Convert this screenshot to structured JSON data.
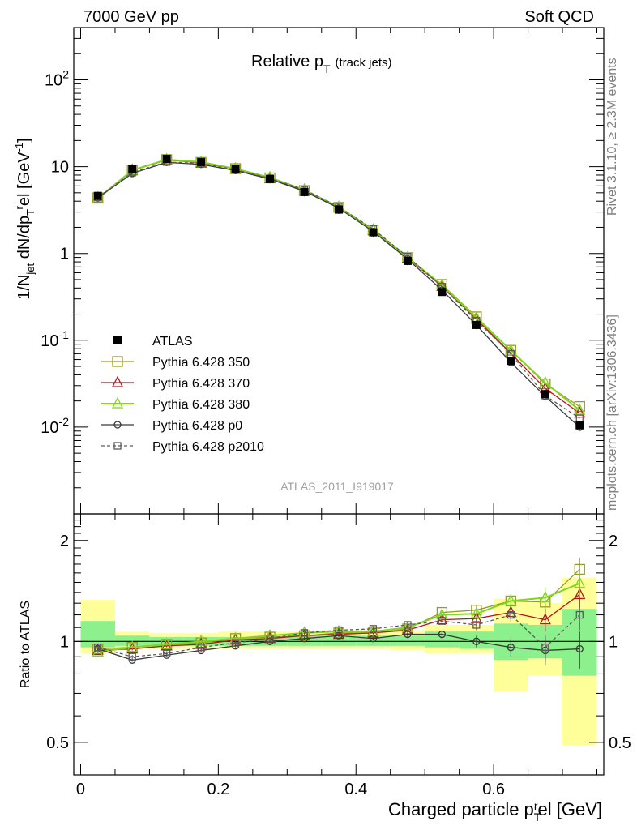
{
  "header": {
    "left": "7000 GeV pp",
    "right": "Soft QCD"
  },
  "side_labels": {
    "rivet": "Rivet 3.1.10, ≥ 2.3M events",
    "source": "mcplots.cern.ch [arXiv:1306.3436]"
  },
  "plot": {
    "title_main": "Relative p",
    "title_sub": "T",
    "title_suffix": "(track jets)",
    "analysis_id": "ATLAS_2011_I919017",
    "ylabel": "1/N_jet dN/dp_T^rel [GeV^-1]",
    "ratio_ylabel": "Ratio to ATLAS",
    "xlabel": "Charged particle p_T^rel [GeV]"
  },
  "axis_text": {
    "x_ticks": [
      "0",
      "0.2",
      "0.4",
      "0.6"
    ],
    "y_ticks": [
      "10^-2",
      "10^-1",
      "1",
      "10",
      "10^2"
    ],
    "ratio_ticks": [
      "0.5",
      "1",
      "2"
    ]
  },
  "legend": [
    {
      "label": "ATLAS",
      "key": "atlas"
    },
    {
      "label": "Pythia 6.428 350",
      "key": "s350"
    },
    {
      "label": "Pythia 6.428 370",
      "key": "s370"
    },
    {
      "label": "Pythia 6.428 380",
      "key": "s380"
    },
    {
      "label": "Pythia 6.428 p0",
      "key": "p0"
    },
    {
      "label": "Pythia 6.428 p2010",
      "key": "p2010"
    }
  ],
  "colors": {
    "atlas": "#000000",
    "s350": "#9a9a1e",
    "s370": "#b0181e",
    "s380": "#7fd61e",
    "p0": "#3a3a3a",
    "p2010": "#5a5a5a",
    "band_outer": "#ffff99",
    "band_inner": "#8cf08c"
  },
  "chart_data": {
    "type": "line",
    "log_y": true,
    "xlim": [
      -0.01,
      0.76
    ],
    "ylim": [
      0.001,
      400
    ],
    "ratio_ylim": [
      0.4,
      2.4
    ],
    "x": [
      0.025,
      0.075,
      0.125,
      0.175,
      0.225,
      0.275,
      0.325,
      0.375,
      0.425,
      0.475,
      0.525,
      0.575,
      0.625,
      0.675,
      0.725
    ],
    "bin_edges": [
      0.0,
      0.05,
      0.1,
      0.15,
      0.2,
      0.25,
      0.3,
      0.35,
      0.4,
      0.45,
      0.5,
      0.55,
      0.6,
      0.65,
      0.7,
      0.75
    ],
    "atlas": [
      4.6,
      9.5,
      12.3,
      11.3,
      9.3,
      7.2,
      5.1,
      3.2,
      1.75,
      0.82,
      0.36,
      0.15,
      0.058,
      0.024,
      0.0105
    ],
    "series": [
      {
        "key": "s350",
        "ratio": [
          0.95,
          0.96,
          0.98,
          0.99,
          1.02,
          1.03,
          1.04,
          1.06,
          1.06,
          1.09,
          1.22,
          1.24,
          1.32,
          1.31,
          1.64
        ],
        "ratio_err": [
          0.01,
          0.01,
          0.01,
          0.01,
          0.01,
          0.01,
          0.01,
          0.01,
          0.01,
          0.02,
          0.03,
          0.04,
          0.06,
          0.1,
          0.14
        ]
      },
      {
        "key": "s370",
        "ratio": [
          0.94,
          0.95,
          0.97,
          0.98,
          1.01,
          1.02,
          1.04,
          1.05,
          1.06,
          1.08,
          1.16,
          1.17,
          1.22,
          1.16,
          1.38
        ],
        "ratio_err": [
          0.01,
          0.01,
          0.01,
          0.01,
          0.01,
          0.01,
          0.01,
          0.01,
          0.01,
          0.02,
          0.03,
          0.04,
          0.06,
          0.09,
          0.12
        ]
      },
      {
        "key": "s380",
        "ratio": [
          0.93,
          0.96,
          0.98,
          1.0,
          1.02,
          1.04,
          1.06,
          1.07,
          1.07,
          1.1,
          1.2,
          1.21,
          1.32,
          1.35,
          1.49
        ],
        "ratio_err": [
          0.01,
          0.01,
          0.01,
          0.01,
          0.01,
          0.01,
          0.01,
          0.01,
          0.01,
          0.02,
          0.03,
          0.04,
          0.06,
          0.1,
          0.13
        ]
      },
      {
        "key": "p0",
        "ratio": [
          0.95,
          0.88,
          0.91,
          0.94,
          0.97,
          1.0,
          1.02,
          1.04,
          1.02,
          1.05,
          1.05,
          1.0,
          0.96,
          0.94,
          0.95
        ],
        "ratio_err": [
          0.01,
          0.01,
          0.01,
          0.01,
          0.01,
          0.01,
          0.01,
          0.01,
          0.01,
          0.02,
          0.03,
          0.04,
          0.06,
          0.09,
          0.12
        ]
      },
      {
        "key": "p2010",
        "ratio": [
          0.96,
          0.9,
          0.92,
          0.96,
          0.99,
          1.02,
          1.06,
          1.08,
          1.09,
          1.12,
          1.15,
          1.12,
          1.2,
          0.96,
          1.2
        ],
        "ratio_err": [
          0.01,
          0.01,
          0.01,
          0.01,
          0.01,
          0.01,
          0.01,
          0.01,
          0.01,
          0.02,
          0.03,
          0.04,
          0.06,
          0.09,
          0.12
        ]
      }
    ],
    "band_inner": [
      [
        0.96,
        1.15
      ],
      [
        0.97,
        1.04
      ],
      [
        0.97,
        1.03
      ],
      [
        0.97,
        1.03
      ],
      [
        0.97,
        1.03
      ],
      [
        0.97,
        1.03
      ],
      [
        0.97,
        1.04
      ],
      [
        0.97,
        1.04
      ],
      [
        0.97,
        1.04
      ],
      [
        0.97,
        1.04
      ],
      [
        0.96,
        1.07
      ],
      [
        0.95,
        1.07
      ],
      [
        0.88,
        1.13
      ],
      [
        0.89,
        1.12
      ],
      [
        0.79,
        1.25
      ]
    ],
    "band_outer": [
      [
        0.92,
        1.33
      ],
      [
        0.95,
        1.07
      ],
      [
        0.95,
        1.06
      ],
      [
        0.95,
        1.06
      ],
      [
        0.95,
        1.07
      ],
      [
        0.95,
        1.07
      ],
      [
        0.95,
        1.07
      ],
      [
        0.95,
        1.08
      ],
      [
        0.95,
        1.08
      ],
      [
        0.94,
        1.08
      ],
      [
        0.92,
        1.12
      ],
      [
        0.92,
        1.12
      ],
      [
        0.71,
        1.34
      ],
      [
        0.79,
        1.3
      ],
      [
        0.49,
        1.55
      ]
    ]
  }
}
